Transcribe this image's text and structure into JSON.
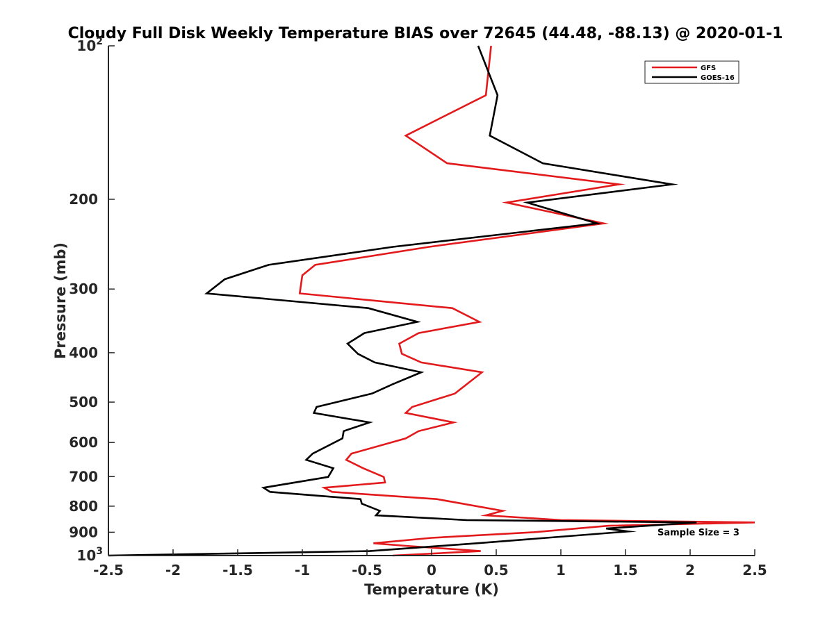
{
  "chart_data": {
    "type": "line",
    "title": "Cloudy Full Disk Weekly Temperature BIAS over 72645 (44.48, -88.13) @ 2020-01-1",
    "xlabel": "Temperature (K)",
    "ylabel": "Pressure (mb)",
    "xlim": [
      -2.5,
      2.5
    ],
    "ylim": [
      100,
      1000
    ],
    "y_scale": "log",
    "y_reversed": true,
    "x_ticks": [
      "-2.5",
      "-2",
      "-1.5",
      "-1",
      "-0.5",
      "0",
      "0.5",
      "1",
      "1.5",
      "2",
      "2.5"
    ],
    "y_ticks": [
      {
        "value": 100,
        "base": "10",
        "exp": "2"
      },
      {
        "value": 200,
        "label": "200"
      },
      {
        "value": 300,
        "label": "300"
      },
      {
        "value": 400,
        "label": "400"
      },
      {
        "value": 500,
        "label": "500"
      },
      {
        "value": 600,
        "label": "600"
      },
      {
        "value": 700,
        "label": "700"
      },
      {
        "value": 800,
        "label": "800"
      },
      {
        "value": 900,
        "label": "900"
      },
      {
        "value": 1000,
        "base": "10",
        "exp": "3"
      }
    ],
    "grid": false,
    "legend_position": "top-right",
    "annotation": "Sample Size = 3",
    "series": [
      {
        "name": "GFS",
        "color": "#e31a1c",
        "points": [
          [
            0.46,
            100
          ],
          [
            0.42,
            125
          ],
          [
            -0.2,
            150
          ],
          [
            0.12,
            170
          ],
          [
            1.45,
            187
          ],
          [
            0.58,
            203
          ],
          [
            1.33,
            223
          ],
          [
            -0.02,
            248
          ],
          [
            -0.9,
            269
          ],
          [
            -1.0,
            282
          ],
          [
            -1.02,
            306
          ],
          [
            0.16,
            327
          ],
          [
            0.37,
            348
          ],
          [
            -0.1,
            366
          ],
          [
            -0.25,
            384
          ],
          [
            -0.23,
            402
          ],
          [
            -0.08,
            418
          ],
          [
            0.39,
            437
          ],
          [
            0.18,
            481
          ],
          [
            -0.15,
            511
          ],
          [
            -0.2,
            525
          ],
          [
            0.17,
            548
          ],
          [
            -0.1,
            570
          ],
          [
            -0.2,
            589
          ],
          [
            -0.62,
            631
          ],
          [
            -0.66,
            649
          ],
          [
            -0.53,
            674
          ],
          [
            -0.37,
            701
          ],
          [
            -0.36,
            719
          ],
          [
            -0.83,
            736
          ],
          [
            -0.77,
            750
          ],
          [
            0.04,
            775
          ],
          [
            0.55,
            817
          ],
          [
            0.42,
            834
          ],
          [
            1.0,
            852
          ],
          [
            2.5,
            861
          ],
          [
            1.37,
            874
          ],
          [
            0.79,
            900
          ],
          [
            0.0,
            923
          ],
          [
            -0.45,
            946
          ],
          [
            -0.2,
            957
          ],
          [
            0.38,
            980
          ],
          [
            -0.3,
            1000
          ]
        ]
      },
      {
        "name": "GOES-16",
        "color": "#000000",
        "points": [
          [
            0.36,
            100
          ],
          [
            0.51,
            125
          ],
          [
            0.45,
            150
          ],
          [
            0.86,
            170
          ],
          [
            1.86,
            187
          ],
          [
            0.74,
            203
          ],
          [
            1.28,
            223
          ],
          [
            -0.3,
            248
          ],
          [
            -1.26,
            269
          ],
          [
            -1.6,
            287
          ],
          [
            -1.74,
            306
          ],
          [
            -0.49,
            327
          ],
          [
            -0.11,
            348
          ],
          [
            -0.52,
            366
          ],
          [
            -0.65,
            384
          ],
          [
            -0.57,
            402
          ],
          [
            -0.44,
            418
          ],
          [
            -0.08,
            437
          ],
          [
            -0.3,
            461
          ],
          [
            -0.46,
            481
          ],
          [
            -0.89,
            511
          ],
          [
            -0.91,
            525
          ],
          [
            -0.48,
            548
          ],
          [
            -0.68,
            570
          ],
          [
            -0.69,
            589
          ],
          [
            -0.92,
            631
          ],
          [
            -0.97,
            649
          ],
          [
            -0.76,
            674
          ],
          [
            -0.8,
            701
          ],
          [
            -1.3,
            736
          ],
          [
            -1.25,
            750
          ],
          [
            -0.55,
            775
          ],
          [
            -0.54,
            791
          ],
          [
            -0.4,
            817
          ],
          [
            -0.43,
            834
          ],
          [
            0.27,
            852
          ],
          [
            2.05,
            861
          ],
          [
            1.35,
            885
          ],
          [
            1.52,
            897
          ],
          [
            0.35,
            946
          ],
          [
            -0.48,
            980
          ],
          [
            -2.5,
            1000
          ]
        ]
      }
    ]
  }
}
